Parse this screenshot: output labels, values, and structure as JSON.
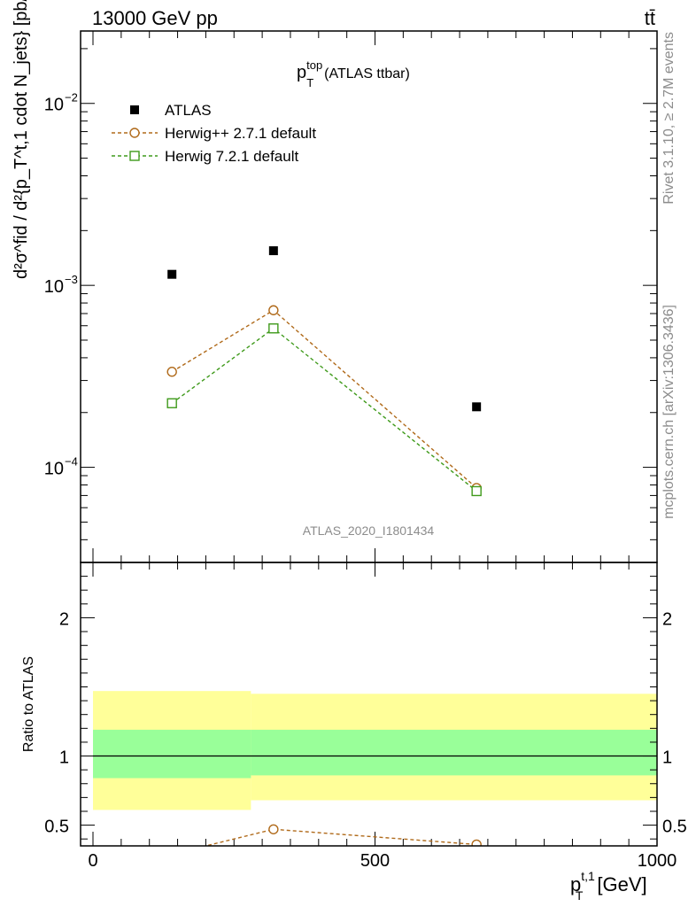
{
  "header": {
    "left": "13000 GeV pp",
    "right": "tt̄"
  },
  "side_labels": {
    "rivet": "Rivet 3.1.10, ≥ 2.7M events",
    "mcplots": "mcplots.cern.ch [arXiv:1306.3436]"
  },
  "colors": {
    "atlas": "#000000",
    "herwigpp": "#b06a1a",
    "herwig7": "#3f9a1b",
    "band_inner": "#99ff99",
    "band_outer": "#ffff99"
  },
  "chart_data": [
    {
      "type": "scatter",
      "panel": "main",
      "title_main": "p",
      "title_sup": "top",
      "title_sub": "T",
      "title_rest": "(ATLAS ttbar)",
      "ylabel": "d²σ^fid / d²{p_T^t,1 cdot N_jets} [pb/GeV]",
      "yscale": "log",
      "ylim": [
        3e-05,
        0.025
      ],
      "xlim": [
        -22,
        1000
      ],
      "watermark": "ATLAS_2020_I1801434",
      "legend_position": "top-left",
      "y_tick_labels": [
        "10",
        "10",
        "10"
      ],
      "y_tick_exponents": [
        "−2",
        "−3",
        "−4"
      ],
      "y_tick_values": [
        0.01,
        0.001,
        0.0001
      ],
      "series": [
        {
          "name": "ATLAS",
          "marker": "filled-square",
          "x": [
            140,
            320,
            680
          ],
          "y": [
            0.00115,
            0.00155,
            0.000215
          ]
        },
        {
          "name": "Herwig++ 2.7.1 default",
          "marker": "open-circle",
          "line": "dashed",
          "x": [
            140,
            320,
            680
          ],
          "y": [
            0.000335,
            0.00073,
            7.7e-05
          ]
        },
        {
          "name": "Herwig 7.2.1 default",
          "marker": "open-square",
          "line": "dashed",
          "x": [
            140,
            320,
            680
          ],
          "y": [
            0.000225,
            0.00058,
            7.4e-05
          ]
        }
      ]
    },
    {
      "type": "line",
      "panel": "ratio",
      "ylabel": "Ratio to ATLAS",
      "xlabel_main": "p",
      "xlabel_sup": "t,1",
      "xlabel_sub": "T",
      "xlabel_rest": "[GeV]",
      "ylim": [
        0.35,
        2.4
      ],
      "xlim": [
        -22,
        1000
      ],
      "x_ticks": [
        0,
        500,
        1000
      ],
      "x_tick_labels": [
        "0",
        "500",
        "1000"
      ],
      "y_ticks": [
        0.5,
        1,
        2
      ],
      "y_tick_labels": [
        "0.5",
        "1",
        "2"
      ],
      "bands": [
        {
          "x": [
            0,
            280
          ],
          "inner": [
            0.84,
            1.19
          ],
          "outer": [
            0.61,
            1.47
          ]
        },
        {
          "x": [
            280,
            1000
          ],
          "inner": [
            0.86,
            1.19
          ],
          "outer": [
            0.68,
            1.45
          ]
        }
      ],
      "series": [
        {
          "name": "Herwig++ 2.7.1 default",
          "x": [
            140,
            320,
            680
          ],
          "y": [
            0.29,
            0.47,
            0.36
          ],
          "yerr": [
            null,
            0.03,
            null
          ]
        }
      ]
    }
  ]
}
